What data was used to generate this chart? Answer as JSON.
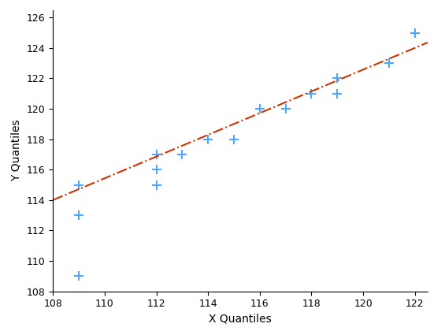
{
  "xlabel": "X Quantiles",
  "ylabel": "Y Quantiles",
  "xlim": [
    108,
    122.5
  ],
  "ylim": [
    108,
    126.5
  ],
  "xticks": [
    108,
    110,
    112,
    114,
    116,
    118,
    120,
    122
  ],
  "yticks": [
    108,
    110,
    112,
    114,
    116,
    118,
    120,
    122,
    124,
    126
  ],
  "scatter_x": [
    109,
    109,
    109,
    112,
    112,
    112,
    113,
    114,
    115,
    116,
    117,
    118,
    119,
    119,
    121,
    121,
    122
  ],
  "scatter_y": [
    109,
    113,
    115,
    115,
    116,
    117,
    117,
    118,
    118,
    120,
    120,
    121,
    122,
    121,
    123,
    123,
    125
  ],
  "scatter_color": "#4da6ff",
  "marker": "+",
  "marker_size": 8,
  "marker_linewidth": 1.5,
  "line_x": [
    108,
    122.5
  ],
  "line_y": [
    114.0,
    124.36
  ],
  "line_color": "#cc3300",
  "line_style": "-.",
  "line_width": 1.5,
  "background_color": "#ffffff",
  "label_fontsize": 10,
  "tick_fontsize": 9
}
